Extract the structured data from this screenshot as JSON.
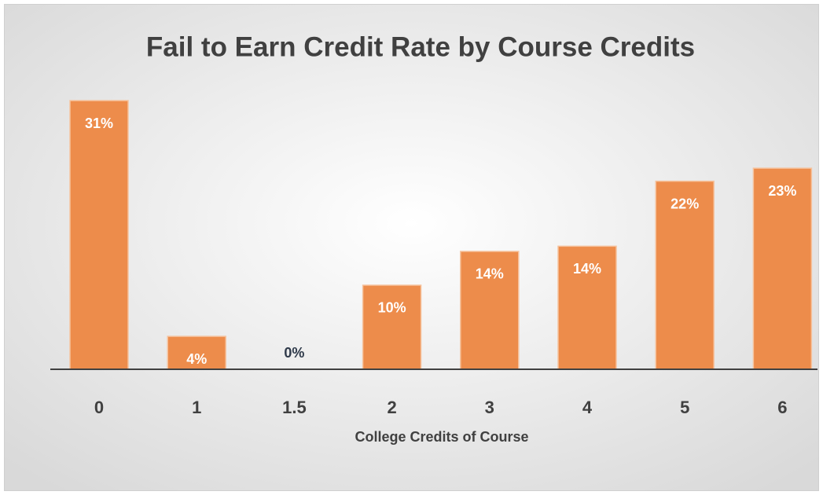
{
  "chart_data": {
    "type": "bar",
    "title": "Fail to Earn Credit Rate by Course Credits",
    "x_label": "College Credits of Course",
    "categories": [
      "0",
      "1",
      "1.5",
      "2",
      "3",
      "4",
      "5",
      "6"
    ],
    "values": [
      31,
      3.8,
      0,
      9.7,
      13.6,
      14.2,
      21.7,
      23.2
    ],
    "value_labels": [
      "31%",
      "4%",
      "0%",
      "10%",
      "14%",
      "14%",
      "22%",
      "23%"
    ],
    "color": "#ed8c4b"
  }
}
